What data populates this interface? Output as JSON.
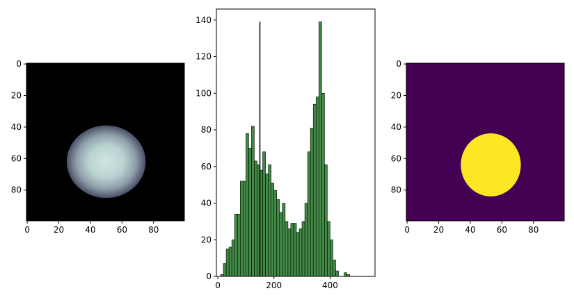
{
  "chart_data": [
    {
      "type": "image",
      "colormap": "bone",
      "xticks": [
        0,
        20,
        40,
        60,
        80
      ],
      "yticks": [
        0,
        20,
        40,
        60,
        80
      ],
      "xlim": [
        -0.5,
        99.5
      ],
      "ylim": [
        99.5,
        -0.5
      ],
      "region": {
        "center": [
          50,
          62
        ],
        "radii": [
          25,
          23
        ],
        "bright_center": [
          50,
          62
        ]
      }
    },
    {
      "type": "bar",
      "color": "#2e7d32",
      "edgecolor": "#000000",
      "xticks": [
        0,
        200,
        400
      ],
      "yticks": [
        0,
        20,
        40,
        60,
        80,
        100,
        120,
        140
      ],
      "xlim": [
        -5,
        560
      ],
      "ylim": [
        0,
        146
      ],
      "vline": {
        "x": 150,
        "y0": 0,
        "y1": 139
      },
      "bin_width": 10,
      "x": [
        15,
        25,
        35,
        45,
        55,
        65,
        75,
        85,
        95,
        105,
        115,
        125,
        135,
        145,
        155,
        165,
        175,
        185,
        195,
        205,
        215,
        225,
        235,
        245,
        255,
        265,
        275,
        285,
        295,
        305,
        315,
        325,
        335,
        345,
        355,
        365,
        375,
        385,
        395,
        405,
        415,
        425,
        435,
        445,
        455,
        465,
        475,
        485,
        495,
        505
      ],
      "values": [
        1,
        7,
        15,
        16,
        20,
        34,
        34,
        52,
        52,
        78,
        70,
        82,
        63,
        61,
        58,
        68,
        56,
        61,
        51,
        47,
        42,
        35,
        40,
        30,
        26,
        29,
        29,
        24,
        26,
        30,
        40,
        68,
        81,
        94,
        98,
        139,
        100,
        61,
        30,
        20,
        9,
        3,
        0,
        0,
        2,
        1,
        0,
        0,
        0,
        0
      ]
    },
    {
      "type": "image",
      "colormap": "viridis-binary",
      "colors": {
        "background": "#440154",
        "foreground": "#fde725"
      },
      "xticks": [
        0,
        20,
        40,
        60,
        80
      ],
      "yticks": [
        0,
        20,
        40,
        60,
        80
      ],
      "xlim": [
        -0.5,
        99.5
      ],
      "ylim": [
        99.5,
        -0.5
      ],
      "mask": {
        "center": [
          53,
          64
        ],
        "radii": [
          19,
          20
        ]
      }
    }
  ]
}
